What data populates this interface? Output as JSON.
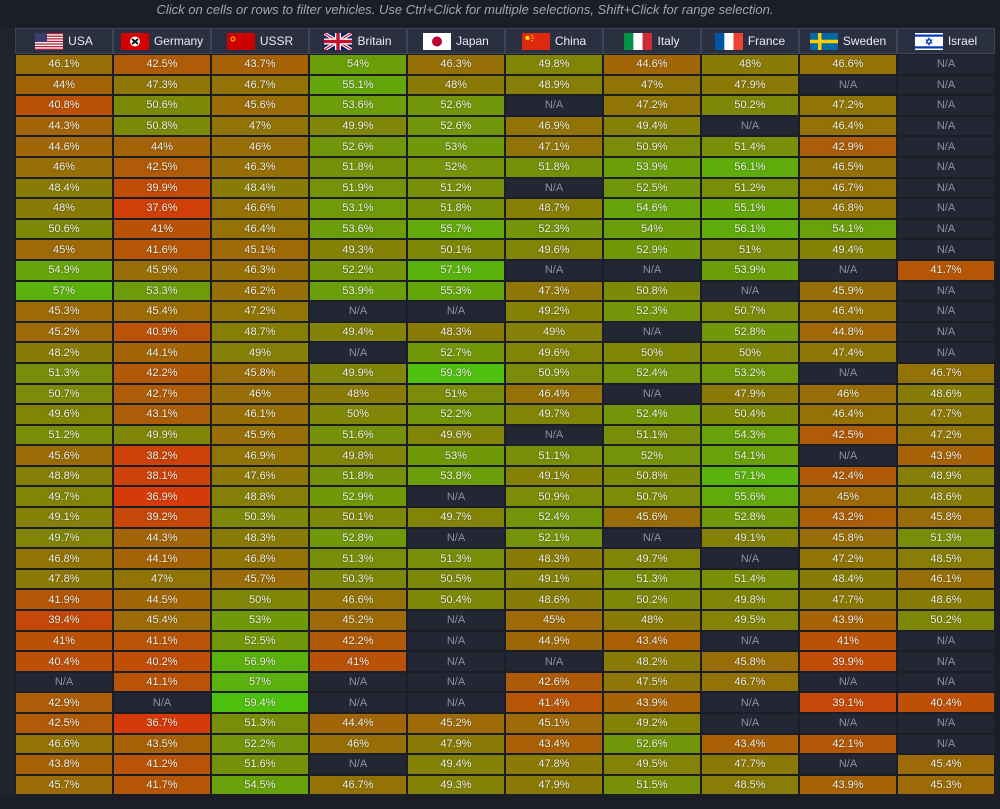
{
  "hint": "Click on cells or rows to filter vehicles. Use Ctrl+Click for multiple selections, Shift+Click for range selection.",
  "countries": [
    {
      "name": "USA",
      "flag_icon": "usa-flag-icon"
    },
    {
      "name": "Germany",
      "flag_icon": "germany-flag-icon"
    },
    {
      "name": "USSR",
      "flag_icon": "ussr-flag-icon"
    },
    {
      "name": "Britain",
      "flag_icon": "britain-flag-icon"
    },
    {
      "name": "Japan",
      "flag_icon": "japan-flag-icon"
    },
    {
      "name": "China",
      "flag_icon": "china-flag-icon"
    },
    {
      "name": "Italy",
      "flag_icon": "italy-flag-icon"
    },
    {
      "name": "France",
      "flag_icon": "france-flag-icon"
    },
    {
      "name": "Sweden",
      "flag_icon": "sweden-flag-icon"
    },
    {
      "name": "Israel",
      "flag_icon": "israel-flag-icon"
    }
  ],
  "na_label": "N/A",
  "rows": [
    [
      "46.1%",
      "42.5%",
      "43.7%",
      "54%",
      "46.3%",
      "49.8%",
      "44.6%",
      "48%",
      "46.6%",
      "N/A"
    ],
    [
      "44%",
      "47.3%",
      "46.7%",
      "55.1%",
      "48%",
      "48.9%",
      "47%",
      "47.9%",
      "N/A",
      "N/A"
    ],
    [
      "40.8%",
      "50.6%",
      "45.6%",
      "53.6%",
      "52.6%",
      "N/A",
      "47.2%",
      "50.2%",
      "47.2%",
      "N/A"
    ],
    [
      "44.3%",
      "50.8%",
      "47%",
      "49.9%",
      "52.6%",
      "46.9%",
      "49.4%",
      "N/A",
      "46.4%",
      "N/A"
    ],
    [
      "44.6%",
      "44%",
      "46%",
      "52.6%",
      "53%",
      "47.1%",
      "50.9%",
      "51.4%",
      "42.9%",
      "N/A"
    ],
    [
      "46%",
      "42.5%",
      "46.3%",
      "51.8%",
      "52%",
      "51.8%",
      "53.9%",
      "56.1%",
      "46.5%",
      "N/A"
    ],
    [
      "48.4%",
      "39.9%",
      "48.4%",
      "51.9%",
      "51.2%",
      "N/A",
      "52.5%",
      "51.2%",
      "46.7%",
      "N/A"
    ],
    [
      "48%",
      "37.6%",
      "46.6%",
      "53.1%",
      "51.8%",
      "48.7%",
      "54.6%",
      "55.1%",
      "46.8%",
      "N/A"
    ],
    [
      "50.6%",
      "41%",
      "46.4%",
      "53.6%",
      "55.7%",
      "52.3%",
      "54%",
      "56.1%",
      "54.1%",
      "N/A"
    ],
    [
      "45%",
      "41.6%",
      "45.1%",
      "49.3%",
      "50.1%",
      "49.6%",
      "52.9%",
      "51%",
      "49.4%",
      "N/A"
    ],
    [
      "54.9%",
      "45.9%",
      "46.3%",
      "52.2%",
      "57.1%",
      "N/A",
      "N/A",
      "53.9%",
      "N/A",
      "41.7%"
    ],
    [
      "57%",
      "53.3%",
      "46.2%",
      "53.9%",
      "55.3%",
      "47.3%",
      "50.8%",
      "N/A",
      "45.9%",
      "N/A"
    ],
    [
      "45.3%",
      "45.4%",
      "47.2%",
      "N/A",
      "N/A",
      "49.2%",
      "52.3%",
      "50.7%",
      "46.4%",
      "N/A"
    ],
    [
      "45.2%",
      "40.9%",
      "48.7%",
      "49.4%",
      "48.3%",
      "49%",
      "N/A",
      "52.8%",
      "44.8%",
      "N/A"
    ],
    [
      "48.2%",
      "44.1%",
      "49%",
      "N/A",
      "52.7%",
      "49.6%",
      "50%",
      "50%",
      "47.4%",
      "N/A"
    ],
    [
      "51.3%",
      "42.2%",
      "45.8%",
      "49.9%",
      "59.3%",
      "50.9%",
      "52.4%",
      "53.2%",
      "N/A",
      "46.7%"
    ],
    [
      "50.7%",
      "42.7%",
      "46%",
      "48%",
      "51%",
      "46.4%",
      "N/A",
      "47.9%",
      "46%",
      "48.6%"
    ],
    [
      "49.6%",
      "43.1%",
      "46.1%",
      "50%",
      "52.2%",
      "49.7%",
      "52.4%",
      "50.4%",
      "46.4%",
      "47.7%"
    ],
    [
      "51.2%",
      "49.9%",
      "45.9%",
      "51.6%",
      "49.6%",
      "N/A",
      "51.1%",
      "54.3%",
      "42.5%",
      "47.2%"
    ],
    [
      "45.6%",
      "38.2%",
      "46.9%",
      "49.8%",
      "53%",
      "51.1%",
      "52%",
      "54.1%",
      "N/A",
      "43.9%"
    ],
    [
      "48.8%",
      "38.1%",
      "47.6%",
      "51.8%",
      "53.8%",
      "49.1%",
      "50.8%",
      "57.1%",
      "42.4%",
      "48.9%"
    ],
    [
      "49.7%",
      "36.9%",
      "48.8%",
      "52.9%",
      "N/A",
      "50.9%",
      "50.7%",
      "55.6%",
      "45%",
      "48.6%"
    ],
    [
      "49.1%",
      "39.2%",
      "50.3%",
      "50.1%",
      "49.7%",
      "52.4%",
      "45.6%",
      "52.8%",
      "43.2%",
      "45.8%"
    ],
    [
      "49.7%",
      "44.3%",
      "48.3%",
      "52.8%",
      "N/A",
      "52.1%",
      "N/A",
      "49.1%",
      "45.8%",
      "51.3%"
    ],
    [
      "46.8%",
      "44.1%",
      "46.8%",
      "51.3%",
      "51.3%",
      "48.3%",
      "49.7%",
      "N/A",
      "47.2%",
      "48.5%"
    ],
    [
      "47.8%",
      "47%",
      "45.7%",
      "50.3%",
      "50.5%",
      "49.1%",
      "51.3%",
      "51.4%",
      "48.4%",
      "46.1%"
    ],
    [
      "41.9%",
      "44.5%",
      "50%",
      "46.6%",
      "50.4%",
      "48.6%",
      "50.2%",
      "49.8%",
      "47.7%",
      "48.6%"
    ],
    [
      "39.4%",
      "45.4%",
      "53%",
      "45.2%",
      "N/A",
      "45%",
      "48%",
      "49.5%",
      "43.9%",
      "50.2%"
    ],
    [
      "41%",
      "41.1%",
      "52.5%",
      "42.2%",
      "N/A",
      "44.9%",
      "43.4%",
      "N/A",
      "41%",
      "N/A"
    ],
    [
      "40.4%",
      "40.2%",
      "56.9%",
      "41%",
      "N/A",
      "N/A",
      "48.2%",
      "45.8%",
      "39.9%",
      "N/A"
    ],
    [
      "N/A",
      "41.1%",
      "57%",
      "N/A",
      "N/A",
      "42.6%",
      "47.5%",
      "46.7%",
      "N/A",
      "N/A"
    ],
    [
      "42.9%",
      "N/A",
      "59.4%",
      "N/A",
      "N/A",
      "41.4%",
      "43.9%",
      "N/A",
      "39.1%",
      "40.4%"
    ],
    [
      "42.5%",
      "36.7%",
      "51.3%",
      "44.4%",
      "45.2%",
      "45.1%",
      "49.2%",
      "N/A",
      "N/A",
      "N/A"
    ],
    [
      "46.6%",
      "43.5%",
      "52.2%",
      "46%",
      "47.9%",
      "43.4%",
      "52.6%",
      "43.4%",
      "42.1%",
      "N/A"
    ],
    [
      "43.8%",
      "41.2%",
      "51.6%",
      "N/A",
      "49.4%",
      "47.8%",
      "49.5%",
      "47.7%",
      "N/A",
      "45.4%"
    ],
    [
      "45.7%",
      "41.7%",
      "54.5%",
      "46.7%",
      "49.3%",
      "47.9%",
      "51.5%",
      "48.5%",
      "43.9%",
      "45.3%"
    ]
  ],
  "color_scale": {
    "low_color": "#d63a08",
    "mid_color": "#8a7a06",
    "high_color": "#4ec10e",
    "low_value": 36.7,
    "high_value": 59.4
  },
  "na_color": "#232734"
}
